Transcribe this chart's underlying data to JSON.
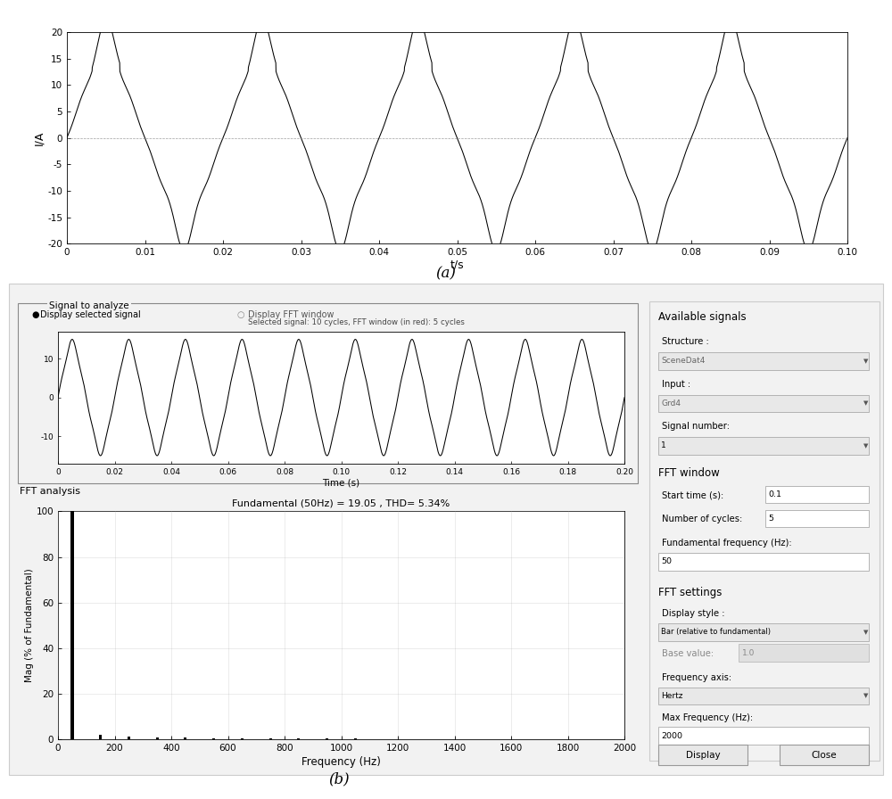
{
  "fig_width": 10.0,
  "fig_height": 8.96,
  "bg_color": "#ffffff",
  "plot_a": {
    "xlabel": "t/s",
    "ylabel": "I/A",
    "xlim": [
      0,
      0.1
    ],
    "ylim": [
      -20,
      20
    ],
    "xticks": [
      0,
      0.01,
      0.02,
      0.03,
      0.04,
      0.05,
      0.06,
      0.07,
      0.08,
      0.09,
      0.1
    ],
    "yticks": [
      -20,
      -15,
      -10,
      -5,
      0,
      5,
      10,
      15,
      20
    ],
    "label_a": "(a)"
  },
  "panel_b": {
    "label_b": "(b)",
    "signal_title": "Signal to analyze",
    "radio1": "Display selected signal",
    "radio2": "Display FFT window",
    "selected_text": "Selected signal: 10 cycles, FFT window (in red): 5 cycles",
    "signal_xlabel": "Time (s)",
    "signal_xlim": [
      0,
      0.2
    ],
    "signal_xticks": [
      0,
      0.02,
      0.04,
      0.06,
      0.08,
      0.1,
      0.12,
      0.14,
      0.16,
      0.18,
      0.2
    ],
    "signal_ylim": [
      -17,
      17
    ],
    "fft_section_title": "FFT analysis",
    "fft_title": "Fundamental (50Hz) = 19.05 , THD= 5.34%",
    "fft_xlabel": "Frequency (Hz)",
    "fft_ylabel": "Mag (% of Fundamental)",
    "fft_xlim": [
      0,
      2000
    ],
    "fft_ylim": [
      0,
      100
    ],
    "fft_xticks": [
      0,
      200,
      400,
      600,
      800,
      1000,
      1200,
      1400,
      1600,
      1800,
      2000
    ],
    "fft_yticks": [
      0,
      20,
      40,
      60,
      80,
      100
    ],
    "available_signals_title": "Available signals",
    "structure_label": "Structure :",
    "structure_val": "SceneDat4",
    "input_label": "Input :",
    "input_val": "Grd4",
    "signal_number_label": "Signal number:",
    "signal_number_val": "1",
    "fft_window_title": "FFT window",
    "start_time_label": "Start time (s):",
    "start_time_val": "0.1",
    "num_cycles_label": "Number of cycles:",
    "num_cycles_val": "5",
    "fund_freq_label": "Fundamental frequency (Hz):",
    "fund_freq_val": "50",
    "fft_settings_title": "FFT settings",
    "display_style_label": "Display style :",
    "display_style_val": "Bar (relative to fundamental)",
    "base_value_label": "Base value:",
    "base_value_val": "1.0",
    "freq_axis_label": "Frequency axis:",
    "freq_axis_val": "Hertz",
    "max_freq_label": "Max Frequency (Hz):",
    "max_freq_val": "2000",
    "btn_display": "Display",
    "btn_close": "Close"
  }
}
